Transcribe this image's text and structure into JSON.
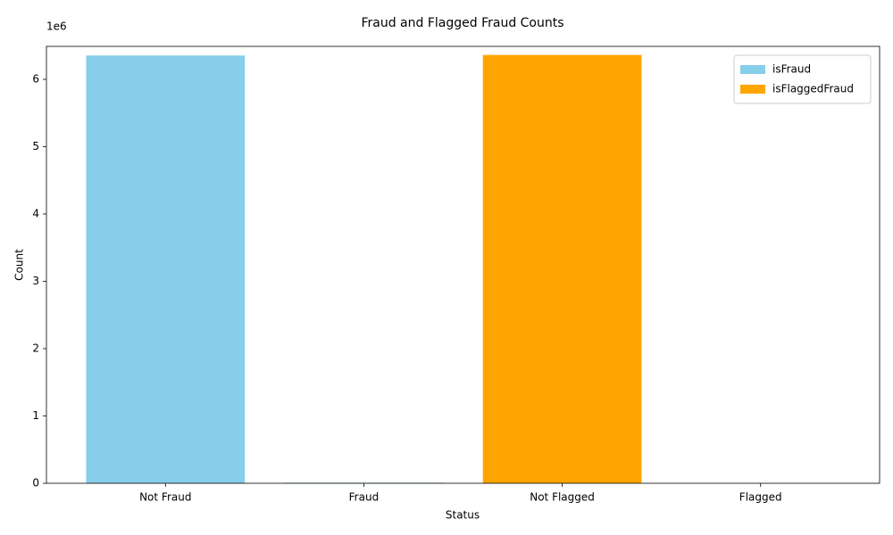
{
  "chart_data": {
    "type": "bar",
    "title": "Fraud and Flagged Fraud Counts",
    "x_label": "Status",
    "y_label": "Count",
    "y_offset_label": "1e6",
    "categories": [
      "Not Fraud",
      "Fraud",
      "Not Flagged",
      "Flagged"
    ],
    "series": [
      {
        "name": "isFraud",
        "color": "#87ceeb",
        "values": [
          6354407,
          8213,
          null,
          null
        ]
      },
      {
        "name": "isFlaggedFraud",
        "color": "#ffa500",
        "values": [
          null,
          null,
          6362604,
          16
        ]
      }
    ],
    "ylim": [
      0,
      6490000
    ],
    "yticks": [
      0,
      {
        "value": 1000000,
        "label": "1"
      },
      {
        "value": 2000000,
        "label": "2"
      },
      {
        "value": 3000000,
        "label": "3"
      },
      {
        "value": 4000000,
        "label": "4"
      },
      {
        "value": 5000000,
        "label": "5"
      },
      {
        "value": 6000000,
        "label": "6"
      }
    ],
    "legend": "upper right",
    "grid": false
  }
}
